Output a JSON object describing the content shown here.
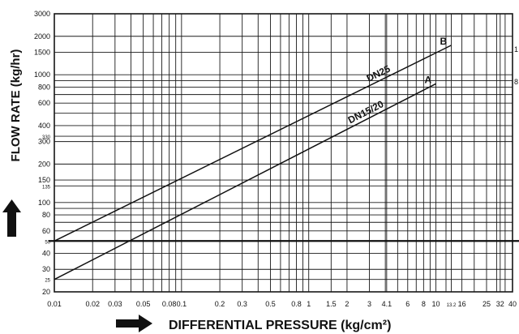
{
  "chart_data": {
    "type": "line",
    "xlabel": "DIFFERENTIAL PRESSURE (kg/cm²)",
    "ylabel": "FLOW RATE (kg/hr)",
    "xscale": "log",
    "yscale": "log",
    "xlim": [
      0.01,
      40
    ],
    "ylim": [
      20,
      3000
    ],
    "grid": true,
    "x_ticks": [
      {
        "v": 0.01,
        "label": "0.01"
      },
      {
        "v": 0.02,
        "label": "0.02"
      },
      {
        "v": 0.03,
        "label": "0.03"
      },
      {
        "v": 0.05,
        "label": "0.05"
      },
      {
        "v": 0.08,
        "label": "0.08"
      },
      {
        "v": 0.1,
        "label": "0.1"
      },
      {
        "v": 0.2,
        "label": "0.2"
      },
      {
        "v": 0.3,
        "label": "0.3"
      },
      {
        "v": 0.5,
        "label": "0.5"
      },
      {
        "v": 0.8,
        "label": "0.8"
      },
      {
        "v": 1,
        "label": "1"
      },
      {
        "v": 1.5,
        "label": "1.5"
      },
      {
        "v": 2,
        "label": "2"
      },
      {
        "v": 3,
        "label": "3"
      },
      {
        "v": 4.1,
        "label": "4.1"
      },
      {
        "v": 6,
        "label": "6"
      },
      {
        "v": 8,
        "label": "8"
      },
      {
        "v": 10,
        "label": "10"
      },
      {
        "v": 13.2,
        "label": "13.2",
        "small": true
      },
      {
        "v": 16,
        "label": "16"
      },
      {
        "v": 25,
        "label": "25"
      },
      {
        "v": 32,
        "label": "32"
      },
      {
        "v": 40,
        "label": "40"
      }
    ],
    "y_ticks": [
      {
        "v": 20,
        "label": "20"
      },
      {
        "v": 25,
        "label": "25",
        "small": true
      },
      {
        "v": 30,
        "label": "30"
      },
      {
        "v": 40,
        "label": "40"
      },
      {
        "v": 50,
        "label": "50",
        "small": true
      },
      {
        "v": 60,
        "label": "60"
      },
      {
        "v": 80,
        "label": "80"
      },
      {
        "v": 100,
        "label": "100"
      },
      {
        "v": 135,
        "label": "135",
        "small": true
      },
      {
        "v": 150,
        "label": "150"
      },
      {
        "v": 200,
        "label": "200"
      },
      {
        "v": 300,
        "label": "300"
      },
      {
        "v": 330,
        "label": "330",
        "small": true
      },
      {
        "v": 400,
        "label": "400"
      },
      {
        "v": 600,
        "label": "600"
      },
      {
        "v": 800,
        "label": "800"
      },
      {
        "v": 1000,
        "label": "1000"
      },
      {
        "v": 1500,
        "label": "1500"
      },
      {
        "v": 2000,
        "label": "2000"
      },
      {
        "v": 3000,
        "label": "3000"
      }
    ],
    "minor_x": [
      0.04,
      0.06,
      0.07,
      0.09,
      0.4,
      0.6,
      0.7,
      0.9,
      4,
      5,
      7,
      9,
      12,
      20,
      30,
      35
    ],
    "minor_y": [
      70,
      90,
      500,
      700,
      900
    ],
    "reference_lines": [
      {
        "axis": "y",
        "value": 50
      }
    ],
    "series": [
      {
        "name": "DN15/20",
        "curve_label": "A",
        "x": [
          0.01,
          10
        ],
        "y": [
          25,
          850
        ]
      },
      {
        "name": "DN25",
        "curve_label": "B",
        "x": [
          0.01,
          13.2
        ],
        "y": [
          50,
          1700
        ]
      }
    ],
    "right_edge_labels": [
      "1",
      "8"
    ]
  }
}
